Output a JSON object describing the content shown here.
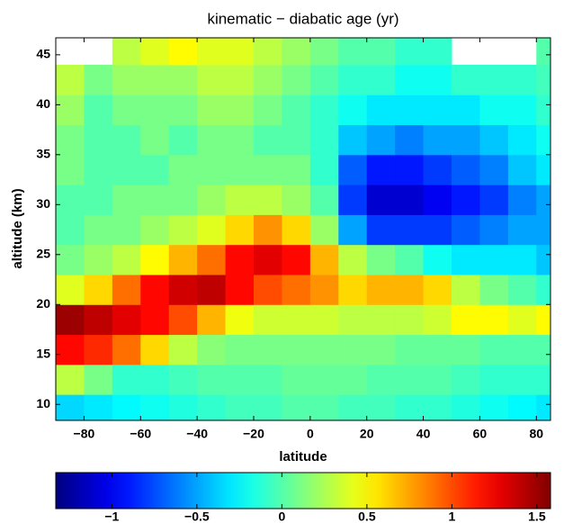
{
  "chart_data": {
    "type": "heatmap",
    "title": "kinematic − diabatic age (yr)",
    "x_label": "latitude",
    "y_label": "altitude (km)",
    "xlim": [
      -90,
      85
    ],
    "ylim": [
      8.4,
      46.7
    ],
    "xticks": [
      {
        "value": -80,
        "label": "−80"
      },
      {
        "value": -60,
        "label": "−60"
      },
      {
        "value": -40,
        "label": "−40"
      },
      {
        "value": -20,
        "label": "−20"
      },
      0,
      20,
      40,
      60,
      80
    ],
    "yticks": [
      10,
      15,
      20,
      25,
      30,
      35,
      40,
      45
    ],
    "colormap": "jet",
    "clim": [
      -1.33,
      1.58
    ],
    "cticks": [
      {
        "value": -1,
        "label": "−1"
      },
      {
        "value": -0.5,
        "label": "−0.5"
      },
      0,
      0.5,
      1,
      1.5
    ],
    "x_edges": [
      -90,
      -80,
      -70,
      -60,
      -50,
      -40,
      -30,
      -20,
      -10,
      0,
      10,
      20,
      30,
      40,
      50,
      60,
      70,
      80,
      85
    ],
    "y_edges": [
      8,
      11,
      14,
      17,
      20,
      23,
      26,
      29,
      32,
      35,
      38,
      41,
      44,
      47
    ],
    "z": [
      [
        -0.35,
        -0.3,
        -0.25,
        -0.2,
        -0.15,
        -0.1,
        -0.05,
        -0.05,
        0,
        0,
        -0.05,
        -0.05,
        -0.1,
        -0.1,
        -0.15,
        -0.2,
        -0.25,
        -0.3
      ],
      [
        0.3,
        0.1,
        -0.1,
        -0.1,
        -0.05,
        0,
        0,
        0,
        0.05,
        0.05,
        0.05,
        0,
        0,
        0,
        -0.05,
        -0.1,
        -0.1,
        -0.1
      ],
      [
        1.2,
        1.1,
        0.9,
        0.6,
        0.3,
        0.15,
        0.1,
        0.1,
        0.1,
        0.1,
        0.1,
        0.1,
        0.05,
        0.05,
        0.05,
        0,
        0,
        0
      ],
      [
        1.5,
        1.4,
        1.3,
        1.2,
        1.0,
        0.7,
        0.45,
        0.35,
        0.35,
        0.35,
        0.3,
        0.3,
        0.3,
        0.35,
        0.5,
        0.5,
        0.4,
        0.5
      ],
      [
        0.4,
        0.6,
        0.9,
        1.2,
        1.35,
        1.4,
        1.2,
        1.0,
        0.9,
        0.8,
        0.6,
        0.7,
        0.7,
        0.6,
        0.3,
        0.1,
        0,
        -0.1
      ],
      [
        0.1,
        0.2,
        0.3,
        0.5,
        0.7,
        0.9,
        1.2,
        1.3,
        1.2,
        0.7,
        0.3,
        0.1,
        0,
        -0.2,
        -0.3,
        -0.3,
        -0.3,
        -0.4
      ],
      [
        0,
        0.1,
        0.1,
        0.2,
        0.3,
        0.4,
        0.6,
        0.8,
        0.6,
        0.2,
        -0.5,
        -0.8,
        -0.8,
        -0.8,
        -0.7,
        -0.6,
        -0.5,
        -0.5
      ],
      [
        0,
        0,
        0.1,
        0.1,
        0.1,
        0.2,
        0.3,
        0.3,
        0.2,
        0,
        -0.8,
        -1.1,
        -1.1,
        -1.0,
        -0.9,
        -0.8,
        -0.6,
        -0.5
      ],
      [
        0.1,
        0,
        0,
        0,
        0.1,
        0.1,
        0.1,
        0.1,
        0.1,
        -0.1,
        -0.7,
        -0.9,
        -0.9,
        -0.8,
        -0.7,
        -0.6,
        -0.4,
        -0.3
      ],
      [
        0.1,
        0,
        0,
        0.1,
        0,
        0.1,
        0.1,
        0,
        0,
        -0.1,
        -0.4,
        -0.5,
        -0.6,
        -0.5,
        -0.5,
        -0.4,
        -0.3,
        -0.2
      ],
      [
        0.2,
        0,
        0.1,
        0.1,
        0.1,
        0.2,
        0.2,
        0.1,
        0,
        -0.1,
        -0.2,
        -0.3,
        -0.3,
        -0.3,
        -0.3,
        -0.2,
        -0.2,
        -0.1
      ],
      [
        0.3,
        0.1,
        0.2,
        0.2,
        0.2,
        0.3,
        0.3,
        0.2,
        0.1,
        0,
        -0.1,
        -0.1,
        -0.2,
        -0.2,
        -0.1,
        -0.1,
        -0.1,
        -0.05
      ],
      [
        null,
        null,
        0.3,
        0.4,
        0.5,
        0.4,
        0.4,
        0.3,
        0.2,
        0.1,
        0,
        0,
        -0.1,
        -0.1,
        null,
        null,
        null,
        0
      ]
    ]
  }
}
